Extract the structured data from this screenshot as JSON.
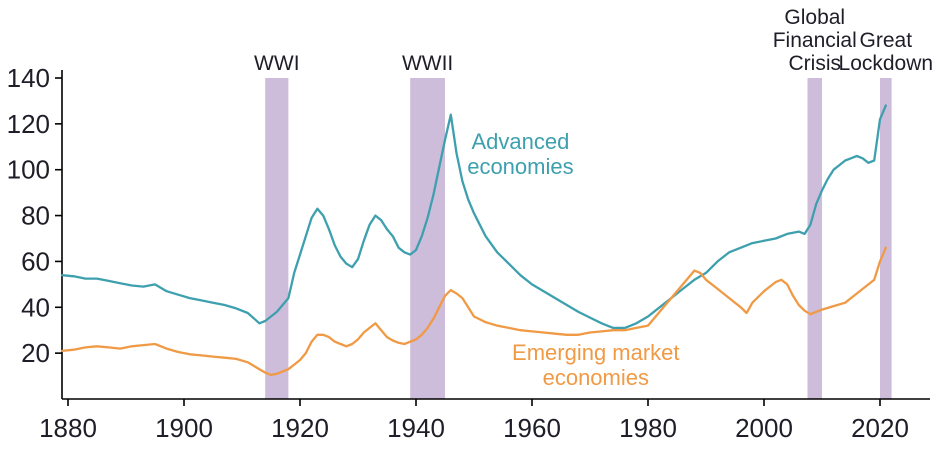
{
  "chart_data": {
    "type": "line",
    "title": "",
    "xlabel": "",
    "ylabel": "",
    "x_axis": {
      "ticks": [
        1880,
        1900,
        1920,
        1940,
        1960,
        1980,
        2000,
        2020
      ],
      "range": [
        1878,
        2028
      ]
    },
    "y_axis": {
      "ticks": [
        20,
        40,
        60,
        80,
        100,
        120,
        140
      ],
      "range": [
        0,
        140
      ]
    },
    "grid": false,
    "legend_position": "inline-annotations",
    "colors": {
      "advanced": "#3EA0AE",
      "emerging": "#F09A45",
      "band": "#C6B0D5",
      "text": "#1E1E28",
      "axis": "#000000"
    },
    "bands": [
      {
        "label_lines": [
          "WWI"
        ],
        "from": 1914,
        "to": 1918
      },
      {
        "label_lines": [
          "WWII"
        ],
        "from": 1939,
        "to": 1945
      },
      {
        "label_lines": [
          "Global",
          "Financial",
          "Crisis"
        ],
        "from": 2007.5,
        "to": 2010
      },
      {
        "label_lines": [
          "Great",
          "Lockdown"
        ],
        "from": 2020,
        "to": 2022
      }
    ],
    "series": [
      {
        "name": "Advanced economies",
        "color_key": "advanced",
        "points": [
          [
            1879,
            54
          ],
          [
            1881,
            53.5
          ],
          [
            1883,
            52.5
          ],
          [
            1885,
            52.5
          ],
          [
            1887,
            51.5
          ],
          [
            1889,
            50.5
          ],
          [
            1891,
            49.5
          ],
          [
            1893,
            49
          ],
          [
            1895,
            50
          ],
          [
            1897,
            47
          ],
          [
            1899,
            45.5
          ],
          [
            1901,
            44
          ],
          [
            1903,
            43
          ],
          [
            1905,
            42
          ],
          [
            1907,
            41
          ],
          [
            1909,
            39.5
          ],
          [
            1911,
            37.5
          ],
          [
            1913,
            33
          ],
          [
            1914,
            34
          ],
          [
            1916,
            38
          ],
          [
            1918,
            44
          ],
          [
            1919,
            55
          ],
          [
            1920,
            63
          ],
          [
            1921,
            71
          ],
          [
            1922,
            79
          ],
          [
            1923,
            83
          ],
          [
            1924,
            80
          ],
          [
            1925,
            74
          ],
          [
            1926,
            67
          ],
          [
            1927,
            62
          ],
          [
            1928,
            59
          ],
          [
            1929,
            57.5
          ],
          [
            1930,
            61
          ],
          [
            1931,
            69
          ],
          [
            1932,
            76
          ],
          [
            1933,
            80
          ],
          [
            1934,
            78
          ],
          [
            1935,
            74
          ],
          [
            1936,
            71
          ],
          [
            1937,
            66
          ],
          [
            1938,
            64
          ],
          [
            1939,
            63
          ],
          [
            1940,
            65
          ],
          [
            1941,
            71
          ],
          [
            1942,
            79
          ],
          [
            1943,
            89
          ],
          [
            1944,
            101
          ],
          [
            1945,
            113
          ],
          [
            1946,
            124
          ],
          [
            1947,
            107
          ],
          [
            1948,
            95
          ],
          [
            1949,
            87
          ],
          [
            1950,
            81
          ],
          [
            1952,
            71
          ],
          [
            1954,
            64
          ],
          [
            1956,
            59
          ],
          [
            1958,
            54
          ],
          [
            1960,
            50
          ],
          [
            1962,
            47
          ],
          [
            1964,
            44
          ],
          [
            1966,
            41
          ],
          [
            1968,
            38
          ],
          [
            1970,
            35.5
          ],
          [
            1972,
            33
          ],
          [
            1974,
            31
          ],
          [
            1976,
            31
          ],
          [
            1978,
            33
          ],
          [
            1980,
            36
          ],
          [
            1982,
            40
          ],
          [
            1984,
            44
          ],
          [
            1986,
            48
          ],
          [
            1988,
            52
          ],
          [
            1990,
            55
          ],
          [
            1992,
            60
          ],
          [
            1994,
            64
          ],
          [
            1996,
            66
          ],
          [
            1998,
            68
          ],
          [
            2000,
            69
          ],
          [
            2002,
            70
          ],
          [
            2004,
            72
          ],
          [
            2006,
            73
          ],
          [
            2007,
            72
          ],
          [
            2008,
            76
          ],
          [
            2009,
            85
          ],
          [
            2010,
            91
          ],
          [
            2011,
            96
          ],
          [
            2012,
            100
          ],
          [
            2013,
            102
          ],
          [
            2014,
            104
          ],
          [
            2015,
            105
          ],
          [
            2016,
            106
          ],
          [
            2017,
            105
          ],
          [
            2018,
            103
          ],
          [
            2019,
            104
          ],
          [
            2020,
            122
          ],
          [
            2021,
            128
          ]
        ]
      },
      {
        "name": "Emerging market economies",
        "color_key": "emerging",
        "points": [
          [
            1879,
            21
          ],
          [
            1881,
            21.5
          ],
          [
            1883,
            22.5
          ],
          [
            1885,
            23
          ],
          [
            1887,
            22.5
          ],
          [
            1889,
            22
          ],
          [
            1891,
            23
          ],
          [
            1893,
            23.5
          ],
          [
            1895,
            24
          ],
          [
            1897,
            22
          ],
          [
            1899,
            20.5
          ],
          [
            1901,
            19.5
          ],
          [
            1903,
            19
          ],
          [
            1905,
            18.5
          ],
          [
            1907,
            18
          ],
          [
            1909,
            17.5
          ],
          [
            1911,
            16
          ],
          [
            1913,
            13
          ],
          [
            1914,
            11.5
          ],
          [
            1915,
            10.5
          ],
          [
            1916,
            11
          ],
          [
            1917,
            12
          ],
          [
            1918,
            13
          ],
          [
            1919,
            15
          ],
          [
            1920,
            17
          ],
          [
            1921,
            20
          ],
          [
            1922,
            25
          ],
          [
            1923,
            28
          ],
          [
            1924,
            28
          ],
          [
            1925,
            27
          ],
          [
            1926,
            25
          ],
          [
            1927,
            24
          ],
          [
            1928,
            23
          ],
          [
            1929,
            24
          ],
          [
            1930,
            26
          ],
          [
            1931,
            29
          ],
          [
            1932,
            31
          ],
          [
            1933,
            33
          ],
          [
            1934,
            30
          ],
          [
            1935,
            27
          ],
          [
            1936,
            25.5
          ],
          [
            1937,
            24.5
          ],
          [
            1938,
            24
          ],
          [
            1939,
            25
          ],
          [
            1940,
            26
          ],
          [
            1941,
            28
          ],
          [
            1942,
            31
          ],
          [
            1943,
            35
          ],
          [
            1944,
            40
          ],
          [
            1945,
            45
          ],
          [
            1946,
            47.5
          ],
          [
            1947,
            46
          ],
          [
            1948,
            44
          ],
          [
            1949,
            40
          ],
          [
            1950,
            36
          ],
          [
            1952,
            33.5
          ],
          [
            1954,
            32
          ],
          [
            1956,
            31
          ],
          [
            1958,
            30
          ],
          [
            1960,
            29.5
          ],
          [
            1962,
            29
          ],
          [
            1964,
            28.5
          ],
          [
            1966,
            28
          ],
          [
            1968,
            28
          ],
          [
            1970,
            29
          ],
          [
            1972,
            29.5
          ],
          [
            1974,
            30
          ],
          [
            1976,
            30
          ],
          [
            1978,
            31
          ],
          [
            1980,
            32
          ],
          [
            1982,
            38
          ],
          [
            1984,
            44
          ],
          [
            1986,
            50
          ],
          [
            1988,
            56
          ],
          [
            1989,
            55
          ],
          [
            1990,
            52
          ],
          [
            1992,
            48
          ],
          [
            1994,
            44
          ],
          [
            1996,
            40
          ],
          [
            1997,
            37.5
          ],
          [
            1998,
            42
          ],
          [
            2000,
            47
          ],
          [
            2002,
            51
          ],
          [
            2003,
            52
          ],
          [
            2004,
            50
          ],
          [
            2005,
            45
          ],
          [
            2006,
            41
          ],
          [
            2007,
            38.5
          ],
          [
            2008,
            37
          ],
          [
            2010,
            39
          ],
          [
            2012,
            40.5
          ],
          [
            2014,
            42
          ],
          [
            2016,
            46
          ],
          [
            2018,
            50
          ],
          [
            2019,
            52
          ],
          [
            2020,
            60
          ],
          [
            2021,
            66
          ]
        ]
      }
    ],
    "annotations": [
      {
        "lines": [
          "Advanced",
          "economies"
        ],
        "color_key": "advanced",
        "x_year": 1958,
        "y_value": 109
      },
      {
        "lines": [
          "Emerging market",
          "economies"
        ],
        "color_key": "emerging",
        "x_year": 1971,
        "y_value": 17
      }
    ]
  }
}
